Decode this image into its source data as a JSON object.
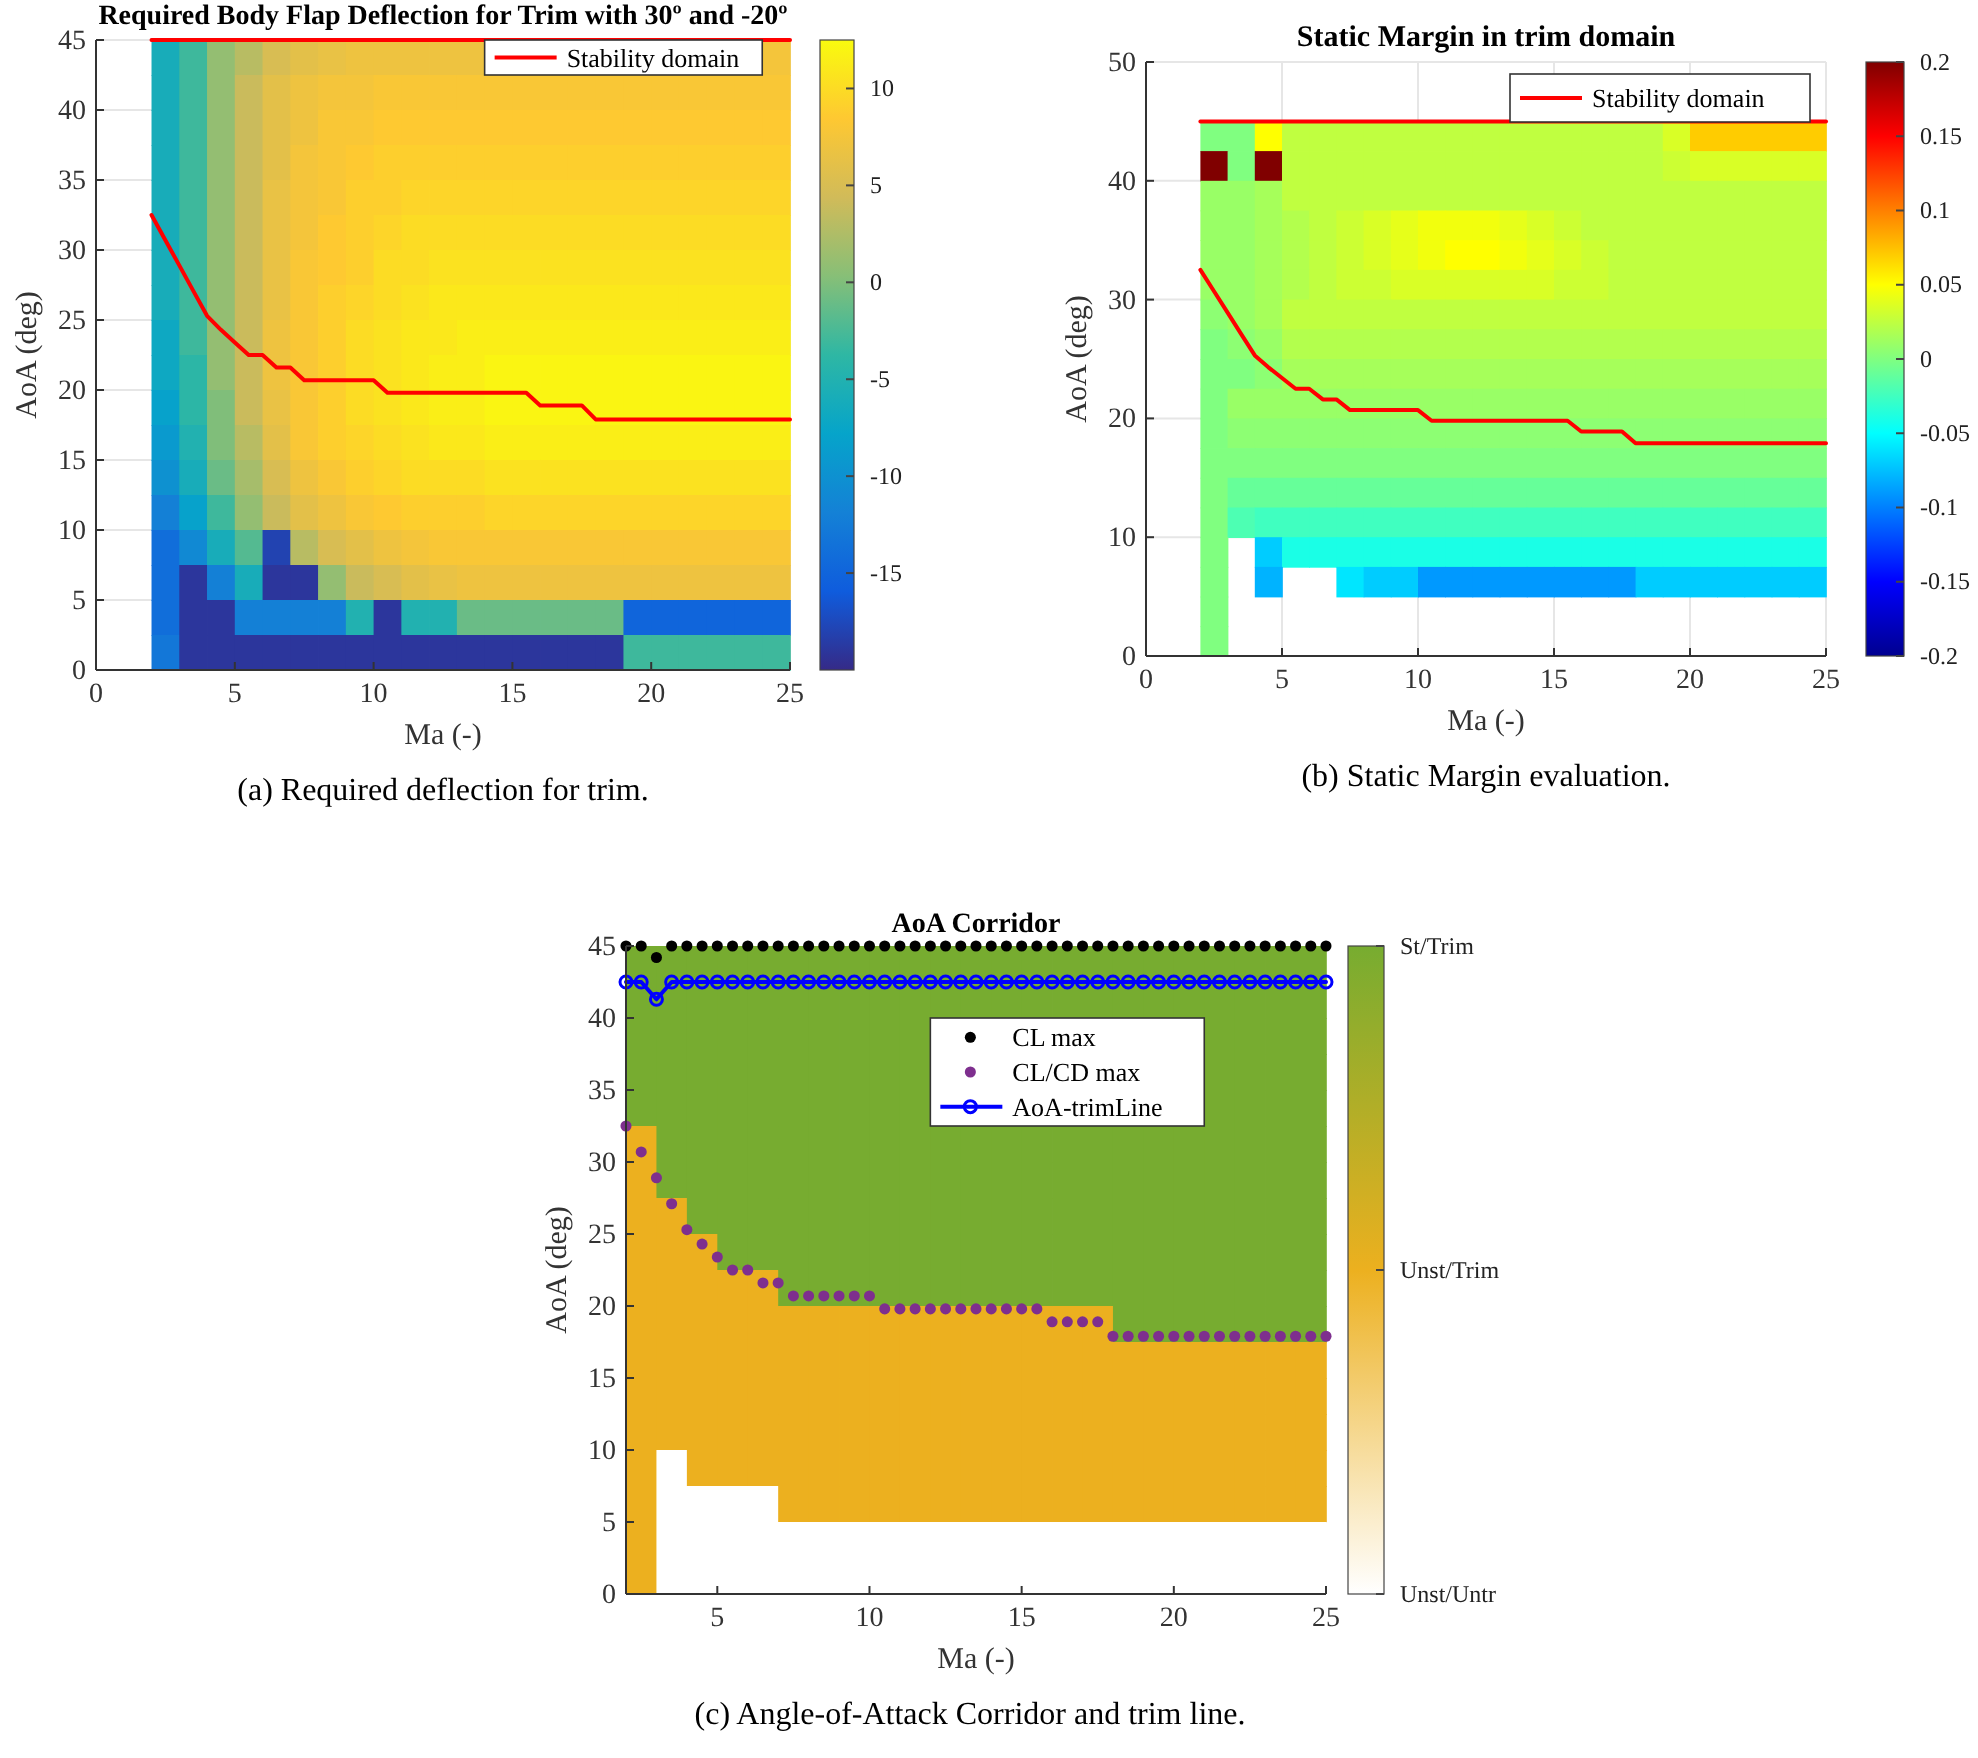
{
  "chart_data": [
    {
      "type": "heatmap",
      "title": "Required Body Flap Deflection for Trim with 30º and -20º",
      "xlabel": "Ma (-)",
      "ylabel": "AoA (deg)",
      "annotations": [
        "(a) Required deflection for trim."
      ],
      "xlim": [
        0,
        25
      ],
      "xticks": [
        0,
        5,
        10,
        15,
        20,
        25
      ],
      "ylim": [
        0,
        45
      ],
      "yticks": [
        0,
        5,
        10,
        15,
        20,
        25,
        30,
        35,
        40,
        45
      ],
      "grid": true,
      "legend": "top right",
      "clim": [
        -20,
        12.5
      ],
      "cticks": [
        -15,
        -10,
        -5,
        0,
        5,
        10
      ],
      "colors": [
        "#352a87",
        "#0f5cdd",
        "#1481d6",
        "#06a4ca",
        "#2eb7a4",
        "#87bf77",
        "#d1bb59",
        "#fec832",
        "#f9fb0e"
      ],
      "x": [
        2.5,
        3.5,
        4.5,
        5.5,
        6.5,
        7.5,
        8.5,
        9.5,
        10.5,
        11.5,
        12.5,
        13.5,
        14.5,
        15.5,
        16.5,
        17.5,
        18.5,
        19.5,
        20.5,
        21.5,
        22.5,
        23.5,
        24.5
      ],
      "y": [
        43.75,
        41.25,
        38.75,
        36.25,
        33.75,
        31.25,
        28.75,
        26.25,
        23.75,
        21.25,
        18.75,
        16.25,
        13.75,
        11.25,
        8.75,
        6.25,
        3.75,
        1.25
      ],
      "cells": [
        [
          -6,
          -3,
          1,
          3,
          5,
          6,
          6.5,
          7,
          7,
          7,
          7,
          7,
          null,
          null,
          null,
          null,
          null,
          null,
          null,
          null,
          null,
          null,
          7.5
        ],
        [
          -6,
          -3,
          1,
          4,
          6,
          7,
          7.5,
          7.5,
          8,
          8,
          8,
          8,
          8,
          8,
          8,
          8,
          8,
          8,
          8,
          8,
          8,
          8,
          8
        ],
        [
          -6,
          -3,
          1,
          4,
          6,
          7,
          8,
          8,
          8.5,
          8.5,
          8.5,
          8.5,
          8.5,
          8.5,
          8.5,
          8.5,
          8.5,
          8.5,
          8.5,
          8.5,
          8.5,
          8.5,
          8.5
        ],
        [
          -6,
          -3,
          1,
          4,
          6,
          7.5,
          8,
          8.5,
          9,
          9,
          9,
          9,
          9,
          9,
          9,
          9,
          9,
          9,
          9,
          9,
          9,
          9,
          9
        ],
        [
          -6,
          -3,
          1,
          4,
          6.5,
          7.5,
          8,
          9,
          9,
          9.5,
          9.5,
          9.5,
          9.5,
          9.5,
          9.5,
          9.5,
          9.5,
          9.5,
          9.5,
          9.5,
          9.5,
          9.5,
          9.5
        ],
        [
          -6,
          -3,
          1,
          4,
          6.5,
          7.5,
          8.5,
          9,
          9.5,
          10,
          10,
          10,
          10,
          10,
          10,
          10,
          10,
          10,
          10,
          10,
          10,
          10,
          10
        ],
        [
          -6,
          -3,
          1,
          4,
          6.5,
          8,
          8.5,
          9,
          10,
          10,
          10.5,
          10.5,
          10.5,
          10.5,
          10.5,
          10.5,
          10.5,
          10.5,
          10.5,
          10.5,
          10.5,
          10.5,
          10.5
        ],
        [
          -6,
          -3,
          1,
          4,
          6.5,
          8,
          9,
          9.5,
          10,
          10.5,
          11,
          11,
          11,
          11,
          11,
          11,
          11,
          11,
          11,
          11,
          11,
          11,
          11
        ],
        [
          -7,
          -3,
          1,
          4,
          7,
          8,
          9,
          10,
          10.5,
          11,
          11,
          11.5,
          11.5,
          11.5,
          11.5,
          11.5,
          11.5,
          11.5,
          11.5,
          11.5,
          11.5,
          11.5,
          11.5
        ],
        [
          -7,
          -4,
          1,
          4,
          7,
          8,
          9,
          10,
          10.5,
          11,
          11.5,
          11.5,
          12,
          12,
          12,
          12,
          12,
          12,
          12,
          12,
          12,
          12,
          12
        ],
        [
          -8,
          -4,
          0,
          4,
          6.5,
          8,
          9,
          10,
          10.5,
          11,
          11.5,
          11.5,
          12,
          12,
          12,
          12,
          12,
          12,
          12,
          12,
          12,
          12,
          12
        ],
        [
          -9,
          -5,
          0,
          3,
          6,
          8,
          9,
          9.5,
          10,
          10.5,
          11,
          11,
          11.5,
          11.5,
          11.5,
          11.5,
          11.5,
          11.5,
          11.5,
          11.5,
          11.5,
          11.5,
          11.5
        ],
        [
          -10,
          -6,
          -1,
          2,
          5,
          7,
          8,
          9,
          9.5,
          10,
          10,
          10,
          10.5,
          10.5,
          10.5,
          10.5,
          10.5,
          10.5,
          10.5,
          10.5,
          10.5,
          10.5,
          10.5
        ],
        [
          -12,
          -8,
          -3,
          1,
          4,
          6,
          7,
          8,
          8.5,
          9,
          9,
          9,
          9.5,
          9.5,
          9.5,
          9.5,
          9.5,
          9.5,
          9.5,
          9.5,
          9.5,
          9.5,
          9.5
        ],
        [
          -14,
          -11,
          -6,
          -2,
          -18,
          3,
          5,
          6,
          7,
          7.5,
          8,
          8,
          8,
          8,
          8,
          8,
          8,
          8,
          8,
          8,
          8,
          8,
          8
        ],
        [
          -14,
          -19,
          -12,
          -6,
          -19,
          -19,
          1,
          4,
          5,
          6,
          6.5,
          7,
          7,
          7,
          7,
          7,
          7,
          7,
          7,
          7,
          7,
          7,
          7
        ],
        [
          -14,
          -19,
          -19,
          -12,
          -12,
          -12,
          -12,
          -5,
          -19,
          -5,
          -5,
          -1,
          -1,
          -1,
          -1,
          -1,
          -1,
          -15,
          -15,
          -15,
          -15,
          -15,
          -15
        ],
        [
          -13,
          -19,
          -19,
          -19,
          -19,
          -19,
          -19,
          -19,
          -19,
          -19,
          -19,
          -19,
          -19,
          -19,
          -19,
          -19,
          -19,
          -3,
          -3,
          -3,
          -3,
          -3,
          -3
        ]
      ],
      "series": [
        {
          "type": "line",
          "name": "Stability domain",
          "color": "#ff0000",
          "x": [
            2,
            2.5,
            3,
            3.5,
            4,
            4.5,
            5,
            5.5,
            6,
            6.5,
            7,
            7.5,
            10,
            10.5,
            15.5,
            16,
            17.5,
            18,
            25
          ],
          "values": [
            32.5,
            30.7,
            28.9,
            27.1,
            25.3,
            24.3,
            23.4,
            22.5,
            22.5,
            21.6,
            21.6,
            20.7,
            20.7,
            19.8,
            19.8,
            18.9,
            18.9,
            17.9,
            17.9
          ]
        },
        {
          "type": "line",
          "color": "#ff0000",
          "x": [
            2,
            25
          ],
          "values": [
            45,
            45
          ]
        }
      ]
    },
    {
      "type": "heatmap",
      "title": "Static Margin in trim domain",
      "xlabel": "Ma (-)",
      "ylabel": "AoA (deg)",
      "annotations": [
        "(b) Static Margin evaluation."
      ],
      "xlim": [
        0,
        25
      ],
      "xticks": [
        0,
        5,
        10,
        15,
        20,
        25
      ],
      "ylim": [
        0,
        50
      ],
      "yticks": [
        0,
        10,
        20,
        30,
        40,
        50
      ],
      "grid": true,
      "legend": "top right",
      "clim": [
        -0.2,
        0.2
      ],
      "cticks": [
        -0.2,
        -0.15,
        -0.1,
        -0.05,
        0,
        0.05,
        0.1,
        0.15,
        0.2
      ],
      "colors": [
        "#00008f",
        "#0000ff",
        "#0080ff",
        "#00ffff",
        "#80ff80",
        "#ffff00",
        "#ff8000",
        "#ff0000",
        "#800000"
      ],
      "x": [
        2.5,
        3.5,
        4.5,
        5.5,
        6.5,
        7.5,
        8.5,
        9.5,
        10.5,
        11.5,
        12.5,
        13.5,
        14.5,
        15.5,
        16.5,
        17.5,
        18.5,
        19.5,
        20.5,
        21.5,
        22.5,
        23.5,
        24.5
      ],
      "y": [
        43.75,
        41.25,
        38.75,
        36.25,
        33.75,
        31.25,
        28.75,
        26.25,
        23.75,
        21.25,
        18.75,
        16.25,
        13.75,
        11.25,
        8.75,
        6.25,
        3.75,
        1.25
      ],
      "cells": [
        [
          0,
          0,
          0.05,
          0.025,
          0.025,
          0.025,
          0.025,
          0.025,
          0.025,
          0.025,
          0.025,
          0.025,
          0.025,
          0.025,
          0.025,
          0.025,
          0.025,
          0.035,
          0.07,
          0.07,
          0.07,
          0.07,
          0.07
        ],
        [
          0.2,
          0,
          0.2,
          0.025,
          0.025,
          0.025,
          0.025,
          0.025,
          0.025,
          0.025,
          0.025,
          0.025,
          0.025,
          0.025,
          0.025,
          0.025,
          0.025,
          0.03,
          0.035,
          0.035,
          0.035,
          0.035,
          0.035
        ],
        [
          0.01,
          0.01,
          0.015,
          0.025,
          0.025,
          0.025,
          0.025,
          0.025,
          0.025,
          0.025,
          0.025,
          0.025,
          0.025,
          0.025,
          0.025,
          0.025,
          0.025,
          0.025,
          0.025,
          0.025,
          0.025,
          0.025,
          0.025
        ],
        [
          0.01,
          0.01,
          0.015,
          0.02,
          0.025,
          0.03,
          0.035,
          0.04,
          0.045,
          0.045,
          0.045,
          0.04,
          0.035,
          0.03,
          0.025,
          0.025,
          0.025,
          0.025,
          0.025,
          0.025,
          0.025,
          0.025,
          0.025
        ],
        [
          0.01,
          0.01,
          0.015,
          0.02,
          0.025,
          0.03,
          0.035,
          0.04,
          0.045,
          0.05,
          0.05,
          0.045,
          0.04,
          0.035,
          0.03,
          0.025,
          0.025,
          0.025,
          0.025,
          0.025,
          0.025,
          0.025,
          0.025
        ],
        [
          0.01,
          0.01,
          0.015,
          0.02,
          0.025,
          0.03,
          0.03,
          0.035,
          0.035,
          0.035,
          0.035,
          0.035,
          0.035,
          0.03,
          0.03,
          0.025,
          0.025,
          0.025,
          0.025,
          0.025,
          0.025,
          0.025,
          0.025
        ],
        [
          0.005,
          0.01,
          0.015,
          0.025,
          0.025,
          0.025,
          0.025,
          0.025,
          0.025,
          0.025,
          0.025,
          0.025,
          0.025,
          0.025,
          0.025,
          0.025,
          0.025,
          0.025,
          0.025,
          0.025,
          0.025,
          0.025,
          0.025
        ],
        [
          0,
          0.005,
          0.01,
          0.02,
          0.02,
          0.02,
          0.02,
          0.02,
          0.02,
          0.02,
          0.02,
          0.02,
          0.02,
          0.02,
          0.02,
          0.02,
          0.02,
          0.02,
          0.02,
          0.02,
          0.02,
          0.02,
          0.02
        ],
        [
          0,
          0,
          0.005,
          0.015,
          0.015,
          0.015,
          0.015,
          0.015,
          0.015,
          0.015,
          0.015,
          0.015,
          0.015,
          0.015,
          0.015,
          0.015,
          0.015,
          0.015,
          0.015,
          0.015,
          0.015,
          0.015,
          0.015
        ],
        [
          0,
          0.01,
          0.01,
          0.01,
          0.01,
          0.01,
          0.01,
          0.01,
          0.01,
          0.01,
          0.01,
          0.01,
          0.01,
          0.01,
          0.01,
          0.01,
          0.01,
          0.01,
          0.01,
          0.01,
          0.01,
          0.01,
          0.01
        ],
        [
          0,
          0.005,
          0.005,
          0.005,
          0.005,
          0.005,
          0.005,
          0.005,
          0.005,
          0.005,
          0.005,
          0.005,
          0.005,
          0.005,
          0.005,
          0.005,
          0.005,
          0.005,
          0.005,
          0.005,
          0.005,
          0.005,
          0.005
        ],
        [
          0,
          0,
          0,
          0,
          0,
          0,
          0,
          0,
          0,
          0,
          0,
          0,
          0,
          0,
          0,
          0,
          0,
          0,
          0,
          0,
          0,
          0,
          0
        ],
        [
          0,
          -0.01,
          -0.01,
          -0.01,
          -0.01,
          -0.01,
          -0.01,
          -0.01,
          -0.01,
          -0.01,
          -0.01,
          -0.01,
          -0.01,
          -0.01,
          -0.01,
          -0.01,
          -0.01,
          -0.01,
          -0.01,
          -0.01,
          -0.01,
          -0.01,
          -0.01
        ],
        [
          0,
          -0.02,
          -0.025,
          -0.025,
          -0.025,
          -0.025,
          -0.025,
          -0.025,
          -0.025,
          -0.025,
          -0.025,
          -0.025,
          -0.025,
          -0.025,
          -0.025,
          -0.025,
          -0.025,
          -0.025,
          -0.025,
          -0.025,
          -0.025,
          -0.025,
          -0.025
        ],
        [
          0,
          null,
          -0.07,
          -0.04,
          -0.04,
          -0.04,
          -0.04,
          -0.04,
          -0.04,
          -0.04,
          -0.04,
          -0.04,
          -0.04,
          -0.04,
          -0.04,
          -0.04,
          -0.04,
          -0.04,
          -0.04,
          -0.04,
          -0.04,
          -0.04,
          -0.04
        ],
        [
          0,
          null,
          -0.08,
          null,
          null,
          -0.06,
          -0.07,
          -0.07,
          -0.09,
          -0.09,
          -0.09,
          -0.09,
          -0.09,
          -0.09,
          -0.09,
          -0.09,
          -0.07,
          -0.07,
          -0.07,
          -0.07,
          -0.07,
          -0.07,
          -0.07
        ],
        [
          0,
          null,
          null,
          null,
          null,
          null,
          null,
          null,
          null,
          null,
          null,
          null,
          null,
          null,
          null,
          null,
          null,
          null,
          null,
          null,
          null,
          null,
          null
        ],
        [
          0,
          null,
          null,
          null,
          null,
          null,
          null,
          null,
          null,
          null,
          null,
          null,
          null,
          null,
          null,
          null,
          null,
          null,
          null,
          null,
          null,
          null,
          null
        ]
      ],
      "series": [
        {
          "type": "line",
          "name": "Stability domain",
          "color": "#ff0000",
          "x": [
            2,
            2.5,
            3,
            3.5,
            4,
            4.5,
            5,
            5.5,
            6,
            6.5,
            7,
            7.5,
            10,
            10.5,
            15.5,
            16,
            17.5,
            18,
            25
          ],
          "values": [
            32.5,
            30.7,
            28.9,
            27.1,
            25.3,
            24.3,
            23.4,
            22.5,
            22.5,
            21.6,
            21.6,
            20.7,
            20.7,
            19.8,
            19.8,
            18.9,
            18.9,
            17.9,
            17.9
          ]
        },
        {
          "type": "line",
          "color": "#ff0000",
          "x": [
            2,
            25
          ],
          "values": [
            45,
            45
          ]
        }
      ]
    },
    {
      "type": "heatmap",
      "title": "AoA Corridor",
      "xlabel": "Ma (-)",
      "ylabel": "AoA (deg)",
      "annotations": [
        "(c) Angle-of-Attack Corridor and trim line."
      ],
      "xlim": [
        2,
        25
      ],
      "xticks": [
        5,
        10,
        15,
        20,
        25
      ],
      "ylim": [
        0,
        45
      ],
      "yticks": [
        0,
        5,
        10,
        15,
        20,
        25,
        30,
        35,
        40,
        45
      ],
      "legend": "right",
      "clim": [
        1,
        3
      ],
      "cticks": [
        {
          "value": 1,
          "label": "Unst/Untr"
        },
        {
          "value": 2,
          "label": "Unst/Trim"
        },
        {
          "value": 3,
          "label": "St/Trim"
        }
      ],
      "colors": [
        "#ffffff",
        "#ecb01f",
        "#77ac30"
      ],
      "x": [
        2.5,
        3.5,
        4.5,
        5.5,
        6.5,
        7.5,
        8.5,
        9.5,
        10.5,
        11.5,
        12.5,
        13.5,
        14.5,
        15.5,
        16.5,
        17.5,
        18.5,
        19.5,
        20.5,
        21.5,
        22.5,
        23.5,
        24.5
      ],
      "y": [
        43.75,
        41.25,
        38.75,
        36.25,
        33.75,
        31.25,
        28.75,
        26.25,
        23.75,
        21.25,
        18.75,
        16.25,
        13.75,
        11.25,
        8.75,
        6.25,
        3.75,
        1.25
      ],
      "cells": [
        [
          3,
          3,
          3,
          3,
          3,
          3,
          3,
          3,
          3,
          3,
          3,
          3,
          3,
          3,
          3,
          3,
          3,
          3,
          3,
          3,
          3,
          3,
          3
        ],
        [
          3,
          3,
          3,
          3,
          3,
          3,
          3,
          3,
          3,
          3,
          3,
          3,
          3,
          3,
          3,
          3,
          3,
          3,
          3,
          3,
          3,
          3,
          3
        ],
        [
          3,
          3,
          3,
          3,
          3,
          3,
          3,
          3,
          3,
          3,
          null,
          null,
          null,
          null,
          null,
          null,
          null,
          null,
          null,
          3,
          3,
          3,
          3
        ],
        [
          3,
          3,
          3,
          3,
          3,
          3,
          3,
          3,
          3,
          3,
          null,
          null,
          null,
          null,
          null,
          null,
          null,
          null,
          null,
          3,
          3,
          3,
          3
        ],
        [
          3,
          3,
          3,
          3,
          3,
          3,
          3,
          3,
          3,
          3,
          null,
          null,
          null,
          null,
          null,
          null,
          null,
          null,
          null,
          3,
          3,
          3,
          3
        ],
        [
          2,
          3,
          3,
          3,
          3,
          3,
          3,
          3,
          3,
          3,
          3,
          3,
          3,
          3,
          3,
          3,
          3,
          3,
          3,
          3,
          3,
          3,
          3
        ],
        [
          2,
          3,
          3,
          3,
          3,
          3,
          3,
          3,
          3,
          3,
          3,
          3,
          3,
          3,
          3,
          3,
          3,
          3,
          3,
          3,
          3,
          3,
          3
        ],
        [
          2,
          2,
          3,
          3,
          3,
          3,
          3,
          3,
          3,
          3,
          3,
          3,
          3,
          3,
          3,
          3,
          3,
          3,
          3,
          3,
          3,
          3,
          3
        ],
        [
          2,
          2,
          2,
          3,
          3,
          3,
          3,
          3,
          3,
          3,
          3,
          3,
          3,
          3,
          3,
          3,
          3,
          3,
          3,
          3,
          3,
          3,
          3
        ],
        [
          2,
          2,
          2,
          2,
          2,
          3,
          3,
          3,
          3,
          3,
          3,
          3,
          3,
          3,
          3,
          3,
          3,
          3,
          3,
          3,
          3,
          3,
          3
        ],
        [
          2,
          2,
          2,
          2,
          2,
          2,
          2,
          2,
          2,
          2,
          2,
          2,
          2,
          2,
          2,
          2,
          3,
          3,
          3,
          3,
          3,
          3,
          3
        ],
        [
          2,
          2,
          2,
          2,
          2,
          2,
          2,
          2,
          2,
          2,
          2,
          2,
          2,
          2,
          2,
          2,
          2,
          2,
          2,
          2,
          2,
          2,
          2
        ],
        [
          2,
          2,
          2,
          2,
          2,
          2,
          2,
          2,
          2,
          2,
          2,
          2,
          2,
          2,
          2,
          2,
          2,
          2,
          2,
          2,
          2,
          2,
          2
        ],
        [
          2,
          2,
          2,
          2,
          2,
          2,
          2,
          2,
          2,
          2,
          2,
          2,
          2,
          2,
          2,
          2,
          2,
          2,
          2,
          2,
          2,
          2,
          2
        ],
        [
          2,
          1,
          2,
          2,
          2,
          2,
          2,
          2,
          2,
          2,
          2,
          2,
          2,
          2,
          2,
          2,
          2,
          2,
          2,
          2,
          2,
          2,
          2
        ],
        [
          2,
          1,
          1,
          1,
          1,
          2,
          2,
          2,
          2,
          2,
          2,
          2,
          2,
          2,
          2,
          2,
          2,
          2,
          2,
          2,
          2,
          2,
          2
        ],
        [
          2,
          1,
          1,
          1,
          1,
          1,
          1,
          1,
          1,
          1,
          1,
          1,
          1,
          1,
          1,
          1,
          1,
          1,
          1,
          1,
          1,
          1,
          1
        ],
        [
          2,
          1,
          1,
          1,
          1,
          1,
          1,
          1,
          1,
          1,
          1,
          1,
          1,
          1,
          1,
          1,
          1,
          1,
          1,
          1,
          1,
          1,
          1
        ]
      ],
      "series": [
        {
          "type": "scatter",
          "name": "CL max",
          "color": "#000000",
          "marker": "circle",
          "x": [
            2,
            2.5,
            3,
            3.5,
            4,
            4.5,
            5,
            5.5,
            6,
            6.5,
            7,
            7.5,
            8,
            8.5,
            9,
            9.5,
            10,
            10.5,
            11,
            11.5,
            12,
            12.5,
            13,
            13.5,
            14,
            14.5,
            15,
            15.5,
            16,
            16.5,
            17,
            17.5,
            18,
            18.5,
            19,
            19.5,
            20,
            20.5,
            21,
            21.5,
            22,
            22.5,
            23,
            23.5,
            24,
            24.5,
            25
          ],
          "values": [
            45,
            45,
            44.2,
            45,
            45,
            45,
            45,
            45,
            45,
            45,
            45,
            45,
            45,
            45,
            45,
            45,
            45,
            45,
            45,
            45,
            45,
            45,
            45,
            45,
            45,
            45,
            45,
            45,
            45,
            45,
            45,
            45,
            45,
            45,
            45,
            45,
            45,
            45,
            45,
            45,
            45,
            45,
            45,
            45,
            45,
            45,
            45
          ]
        },
        {
          "type": "scatter",
          "name": "CL/CD max",
          "color": "#7e2f8e",
          "marker": "circle",
          "x": [
            2,
            2.5,
            3,
            3.5,
            4,
            4.5,
            5,
            5.5,
            6,
            6.5,
            7,
            7.5,
            8,
            8.5,
            9,
            9.5,
            10,
            10.5,
            11,
            11.5,
            12,
            12.5,
            13,
            13.5,
            14,
            14.5,
            15,
            15.5,
            16,
            16.5,
            17,
            17.5,
            18,
            18.5,
            19,
            19.5,
            20,
            20.5,
            21,
            21.5,
            22,
            22.5,
            23,
            23.5,
            24,
            24.5,
            25
          ],
          "values": [
            32.5,
            30.7,
            28.9,
            27.1,
            25.3,
            24.3,
            23.4,
            22.5,
            22.5,
            21.6,
            21.6,
            20.7,
            20.7,
            20.7,
            20.7,
            20.7,
            20.7,
            19.8,
            19.8,
            19.8,
            19.8,
            19.8,
            19.8,
            19.8,
            19.8,
            19.8,
            19.8,
            19.8,
            18.9,
            18.9,
            18.9,
            18.9,
            17.9,
            17.9,
            17.9,
            17.9,
            17.9,
            17.9,
            17.9,
            17.9,
            17.9,
            17.9,
            17.9,
            17.9,
            17.9,
            17.9,
            17.9
          ]
        },
        {
          "type": "line",
          "name": "AoA-trimLine",
          "color": "#0000ff",
          "marker": "circle",
          "x": [
            2,
            2.5,
            3,
            3.5,
            4,
            4.5,
            5,
            5.5,
            6,
            6.5,
            7,
            7.5,
            8,
            8.5,
            9,
            9.5,
            10,
            10.5,
            11,
            11.5,
            12,
            12.5,
            13,
            13.5,
            14,
            14.5,
            15,
            15.5,
            16,
            16.5,
            17,
            17.5,
            18,
            18.5,
            19,
            19.5,
            20,
            20.5,
            21,
            21.5,
            22,
            22.5,
            23,
            23.5,
            24,
            24.5,
            25
          ],
          "values": [
            42.5,
            42.5,
            41.3,
            42.5,
            42.5,
            42.5,
            42.5,
            42.5,
            42.5,
            42.5,
            42.5,
            42.5,
            42.5,
            42.5,
            42.5,
            42.5,
            42.5,
            42.5,
            42.5,
            42.5,
            42.5,
            42.5,
            42.5,
            42.5,
            42.5,
            42.5,
            42.5,
            42.5,
            42.5,
            42.5,
            42.5,
            42.5,
            42.5,
            42.5,
            42.5,
            42.5,
            42.5,
            42.5,
            42.5,
            42.5,
            42.5,
            42.5,
            42.5,
            42.5,
            42.5,
            42.5,
            42.5
          ]
        }
      ]
    }
  ]
}
